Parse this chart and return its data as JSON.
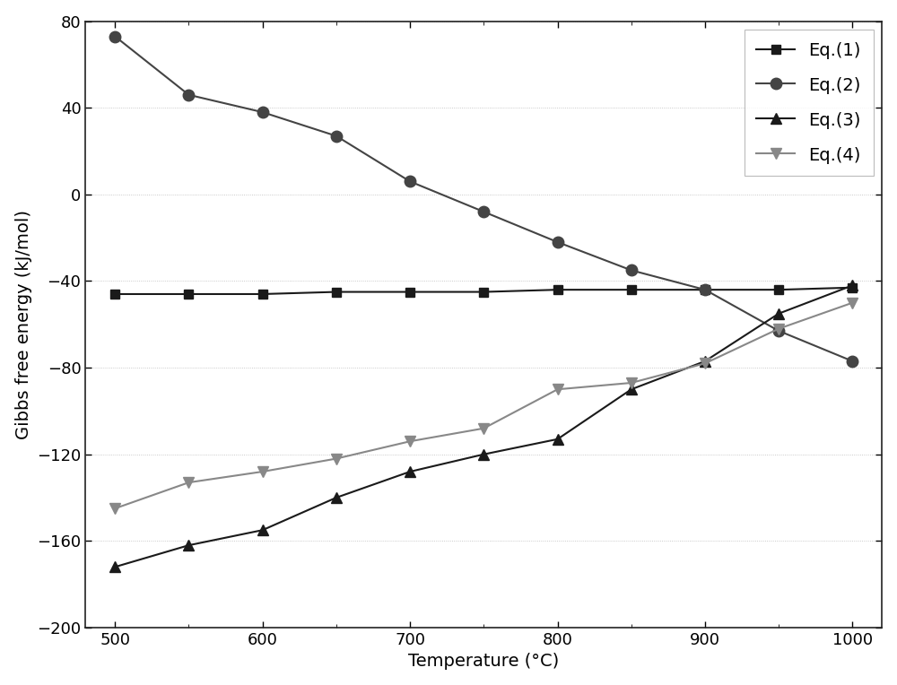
{
  "temperature": [
    500,
    550,
    600,
    650,
    700,
    750,
    800,
    850,
    900,
    950,
    1000
  ],
  "eq1": [
    -46,
    -46,
    -46,
    -45,
    -45,
    -45,
    -44,
    -44,
    -44,
    -44,
    -43
  ],
  "eq2": [
    73,
    46,
    38,
    27,
    6,
    -8,
    -22,
    -35,
    -44,
    -63,
    -77
  ],
  "eq3": [
    -172,
    -162,
    -155,
    -140,
    -128,
    -120,
    -113,
    -90,
    -77,
    -55,
    -42
  ],
  "eq4": [
    -145,
    -133,
    -128,
    -122,
    -114,
    -108,
    -90,
    -87,
    -78,
    -62,
    -50
  ],
  "eq1_color": "#1a1a1a",
  "eq2_color": "#444444",
  "eq3_color": "#1a1a1a",
  "eq4_color": "#888888",
  "xlabel": "Temperature (°C)",
  "ylabel": "Gibbs free energy (kJ/mol)",
  "xlim": [
    480,
    1020
  ],
  "ylim": [
    -200,
    80
  ],
  "xticks": [
    500,
    600,
    700,
    800,
    900,
    1000
  ],
  "yticks": [
    -200,
    -160,
    -120,
    -80,
    -40,
    0,
    40,
    80
  ],
  "legend_labels": [
    "Eq.(1)",
    "Eq.(2)",
    "Eq.(3)",
    "Eq.(4)"
  ],
  "background_color": "#ffffff",
  "axis_fontsize": 14,
  "tick_fontsize": 13,
  "legend_fontsize": 14,
  "linewidth": 1.5,
  "markersize_sq": 7,
  "markersize_circ": 9,
  "markersize_tri": 8
}
